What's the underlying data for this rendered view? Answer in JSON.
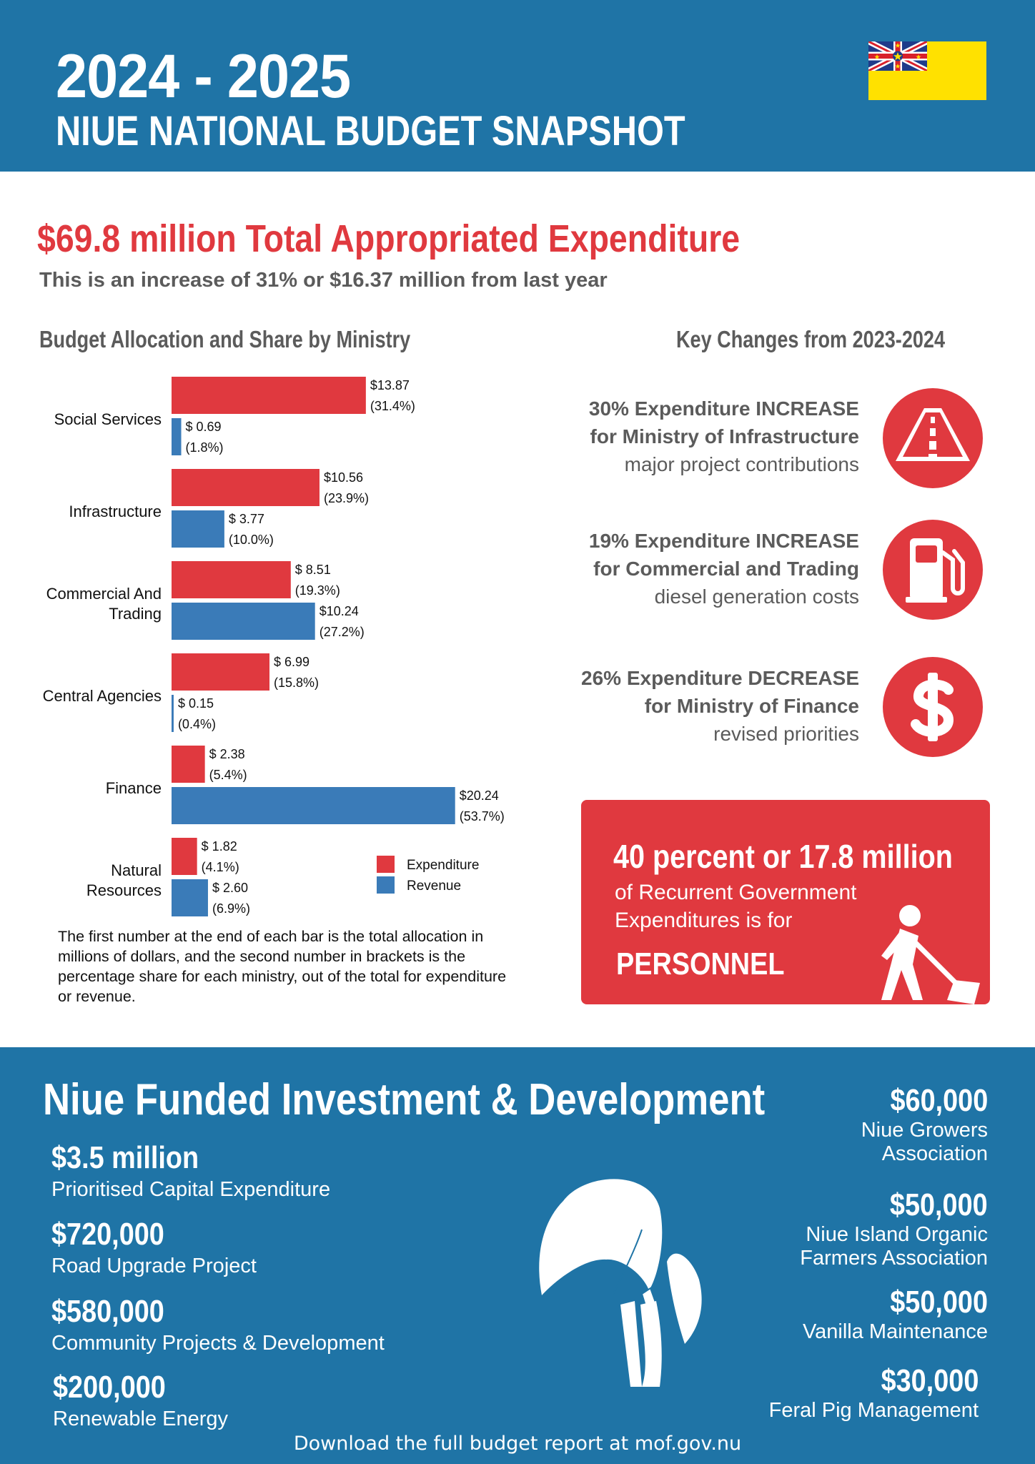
{
  "header": {
    "year": "2024 - 2025",
    "subtitle": "NIUE NATIONAL BUDGET SNAPSHOT"
  },
  "total": {
    "headline": "$69.8 million Total Appropriated Expenditure",
    "sub": "This is an increase of 31% or $16.37 million from last year"
  },
  "chart_section": {
    "title": "Budget Allocation and Share by Ministry",
    "note": "The first number at the end of each bar is the total allocation in millions of dollars, and the second number in brackets is the percentage share for each ministry, out of the total for expenditure or revenue."
  },
  "chart_data": {
    "type": "bar",
    "orientation": "horizontal",
    "title": "Budget Allocation and Share by Ministry",
    "xlabel": "",
    "ylabel": "",
    "unit": "millions of dollars",
    "categories": [
      {
        "line1": "Social Services",
        "line2": ""
      },
      {
        "line1": "Infrastructure",
        "line2": ""
      },
      {
        "line1": "Commercial And",
        "line2": "Trading"
      },
      {
        "line1": "Central Agencies",
        "line2": ""
      },
      {
        "line1": "Finance",
        "line2": ""
      },
      {
        "line1": "Natural",
        "line2": "Resources"
      }
    ],
    "series": [
      {
        "name": "Expenditure",
        "color": "#e0393f",
        "values": [
          13.87,
          10.56,
          8.51,
          6.99,
          2.38,
          1.82
        ],
        "value_labels": [
          "$13.87",
          "$10.56",
          "$ 8.51",
          "$ 6.99",
          "$ 2.38",
          "$ 1.82"
        ],
        "share_labels": [
          "(31.4%)",
          "(23.9%)",
          "(19.3%)",
          "(15.8%)",
          "(5.4%)",
          "(4.1%)"
        ]
      },
      {
        "name": "Revenue",
        "color": "#3a7bb8",
        "values": [
          0.69,
          3.77,
          10.24,
          0.15,
          20.24,
          2.6
        ],
        "value_labels": [
          "$ 0.69",
          "$ 3.77",
          "$10.24",
          "$ 0.15",
          "$20.24",
          "$ 2.60"
        ],
        "share_labels": [
          "(1.8%)",
          "(10.0%)",
          "(27.2%)",
          "(0.4%)",
          "(53.7%)",
          "(6.9%)"
        ]
      }
    ],
    "legend": [
      "Expenditure",
      "Revenue"
    ],
    "legend_position": "bottom-right",
    "grid": false
  },
  "key_changes": {
    "title": "Key Changes from 2023-2024",
    "items": [
      {
        "line1": "30% Expenditure INCREASE",
        "line2": "for Ministry of Infrastructure",
        "line3": "major project contributions",
        "icon": "road-icon"
      },
      {
        "line1": "19% Expenditure INCREASE",
        "line2": "for Commercial and Trading",
        "line3": "diesel generation costs",
        "icon": "fuel-pump-icon"
      },
      {
        "line1": "26% Expenditure DECREASE",
        "line2": "for Ministry of Finance",
        "line3": "revised priorities",
        "icon": "dollar-icon"
      }
    ]
  },
  "personnel": {
    "headline": "40 percent or 17.8 million",
    "line1": "of Recurrent Government",
    "line2": "Expenditures is for",
    "word": "PERSONNEL"
  },
  "investment": {
    "title": "Niue Funded Investment & Development",
    "left": [
      {
        "amount": "$3.5 million",
        "label": "Prioritised Capital Expenditure"
      },
      {
        "amount": "$720,000",
        "label": "Road Upgrade Project"
      },
      {
        "amount": "$580,000",
        "label": "Community Projects & Development"
      },
      {
        "amount": "$200,000",
        "label": "Renewable Energy"
      }
    ],
    "right": [
      {
        "amount": "$60,000",
        "line1": "Niue Growers",
        "line2": "Association"
      },
      {
        "amount": "$50,000",
        "line1": "Niue Island Organic",
        "line2": "Farmers Association"
      },
      {
        "amount": "$50,000",
        "line1": "Vanilla Maintenance",
        "line2": ""
      },
      {
        "amount": "$30,000",
        "line1": "Feral Pig Management",
        "line2": ""
      }
    ]
  },
  "footer": {
    "download": "Download the full budget report at mof.gov.nu"
  },
  "colors": {
    "header_blue": "#1f74a6",
    "accent_red": "#e0393f",
    "revenue_blue": "#3a7bb8",
    "flag_yellow": "#ffe100"
  }
}
